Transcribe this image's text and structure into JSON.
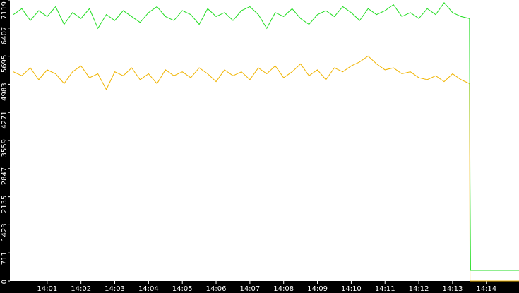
{
  "chart_data": {
    "type": "line",
    "x": [
      "14:00:00",
      "14:00:15",
      "14:00:30",
      "14:00:45",
      "14:01:00",
      "14:01:15",
      "14:01:30",
      "14:01:45",
      "14:02:00",
      "14:02:15",
      "14:02:30",
      "14:02:45",
      "14:03:00",
      "14:03:15",
      "14:03:30",
      "14:03:45",
      "14:04:00",
      "14:04:15",
      "14:04:30",
      "14:04:45",
      "14:05:00",
      "14:05:15",
      "14:05:30",
      "14:05:45",
      "14:06:00",
      "14:06:15",
      "14:06:30",
      "14:06:45",
      "14:07:00",
      "14:07:15",
      "14:07:30",
      "14:07:45",
      "14:08:00",
      "14:08:15",
      "14:08:30",
      "14:08:45",
      "14:09:00",
      "14:09:15",
      "14:09:30",
      "14:09:45",
      "14:10:00",
      "14:10:15",
      "14:10:30",
      "14:10:45",
      "14:11:00",
      "14:11:15",
      "14:11:30",
      "14:11:45",
      "14:12:00",
      "14:12:15",
      "14:12:30",
      "14:12:45",
      "14:13:00",
      "14:13:15",
      "14:13:30",
      "14:13:31",
      "14:13:32",
      "14:14:58"
    ],
    "series": [
      {
        "color": "#22dd22",
        "values": [
          6750,
          6900,
          6600,
          6850,
          6700,
          6950,
          6500,
          6800,
          6650,
          6900,
          6400,
          6750,
          6600,
          6850,
          6700,
          6550,
          6800,
          6950,
          6700,
          6600,
          6850,
          6750,
          6500,
          6900,
          6700,
          6800,
          6600,
          6850,
          6950,
          6750,
          6400,
          6800,
          6700,
          6900,
          6650,
          6500,
          6750,
          6850,
          6700,
          6950,
          6800,
          6600,
          6900,
          6750,
          6850,
          7000,
          6700,
          6800,
          6650,
          6900,
          6750,
          7050,
          6800,
          6700,
          6650,
          2500,
          268,
          268
        ]
      },
      {
        "color": "#f0b400",
        "values": [
          5300,
          5200,
          5400,
          5100,
          5350,
          5250,
          5000,
          5300,
          5450,
          5150,
          5250,
          4850,
          5300,
          5200,
          5400,
          5100,
          5250,
          5000,
          5350,
          5200,
          5300,
          5150,
          5400,
          5250,
          5050,
          5350,
          5200,
          5300,
          5100,
          5400,
          5250,
          5450,
          5150,
          5300,
          5500,
          5200,
          5350,
          5100,
          5400,
          5300,
          5450,
          5550,
          5700,
          5500,
          5350,
          5400,
          5250,
          5300,
          5150,
          5100,
          5200,
          5050,
          5250,
          5100,
          5000,
          0,
          0,
          0
        ]
      }
    ],
    "xlim": [
      "14:00:00",
      "14:14:58"
    ],
    "xticks": [
      {
        "value": "14:01:00",
        "label": "14:01"
      },
      {
        "value": "14:02:00",
        "label": "14:02"
      },
      {
        "value": "14:03:00",
        "label": "14:03"
      },
      {
        "value": "14:04:00",
        "label": "14:04"
      },
      {
        "value": "14:05:00",
        "label": "14:05"
      },
      {
        "value": "14:06:00",
        "label": "14:06"
      },
      {
        "value": "14:07:00",
        "label": "14:07"
      },
      {
        "value": "14:08:00",
        "label": "14:08"
      },
      {
        "value": "14:09:00",
        "label": "14:09"
      },
      {
        "value": "14:10:00",
        "label": "14:10"
      },
      {
        "value": "14:11:00",
        "label": "14:11"
      },
      {
        "value": "14:12:00",
        "label": "14:12"
      },
      {
        "value": "14:13:00",
        "label": "14:13"
      },
      {
        "value": "14:14:00",
        "label": "14:14"
      }
    ],
    "ylim": [
      0,
      7119
    ],
    "yticks": [
      0,
      711,
      1423,
      2135,
      2847,
      3559,
      4271,
      4983,
      5695,
      6407,
      7119
    ]
  }
}
